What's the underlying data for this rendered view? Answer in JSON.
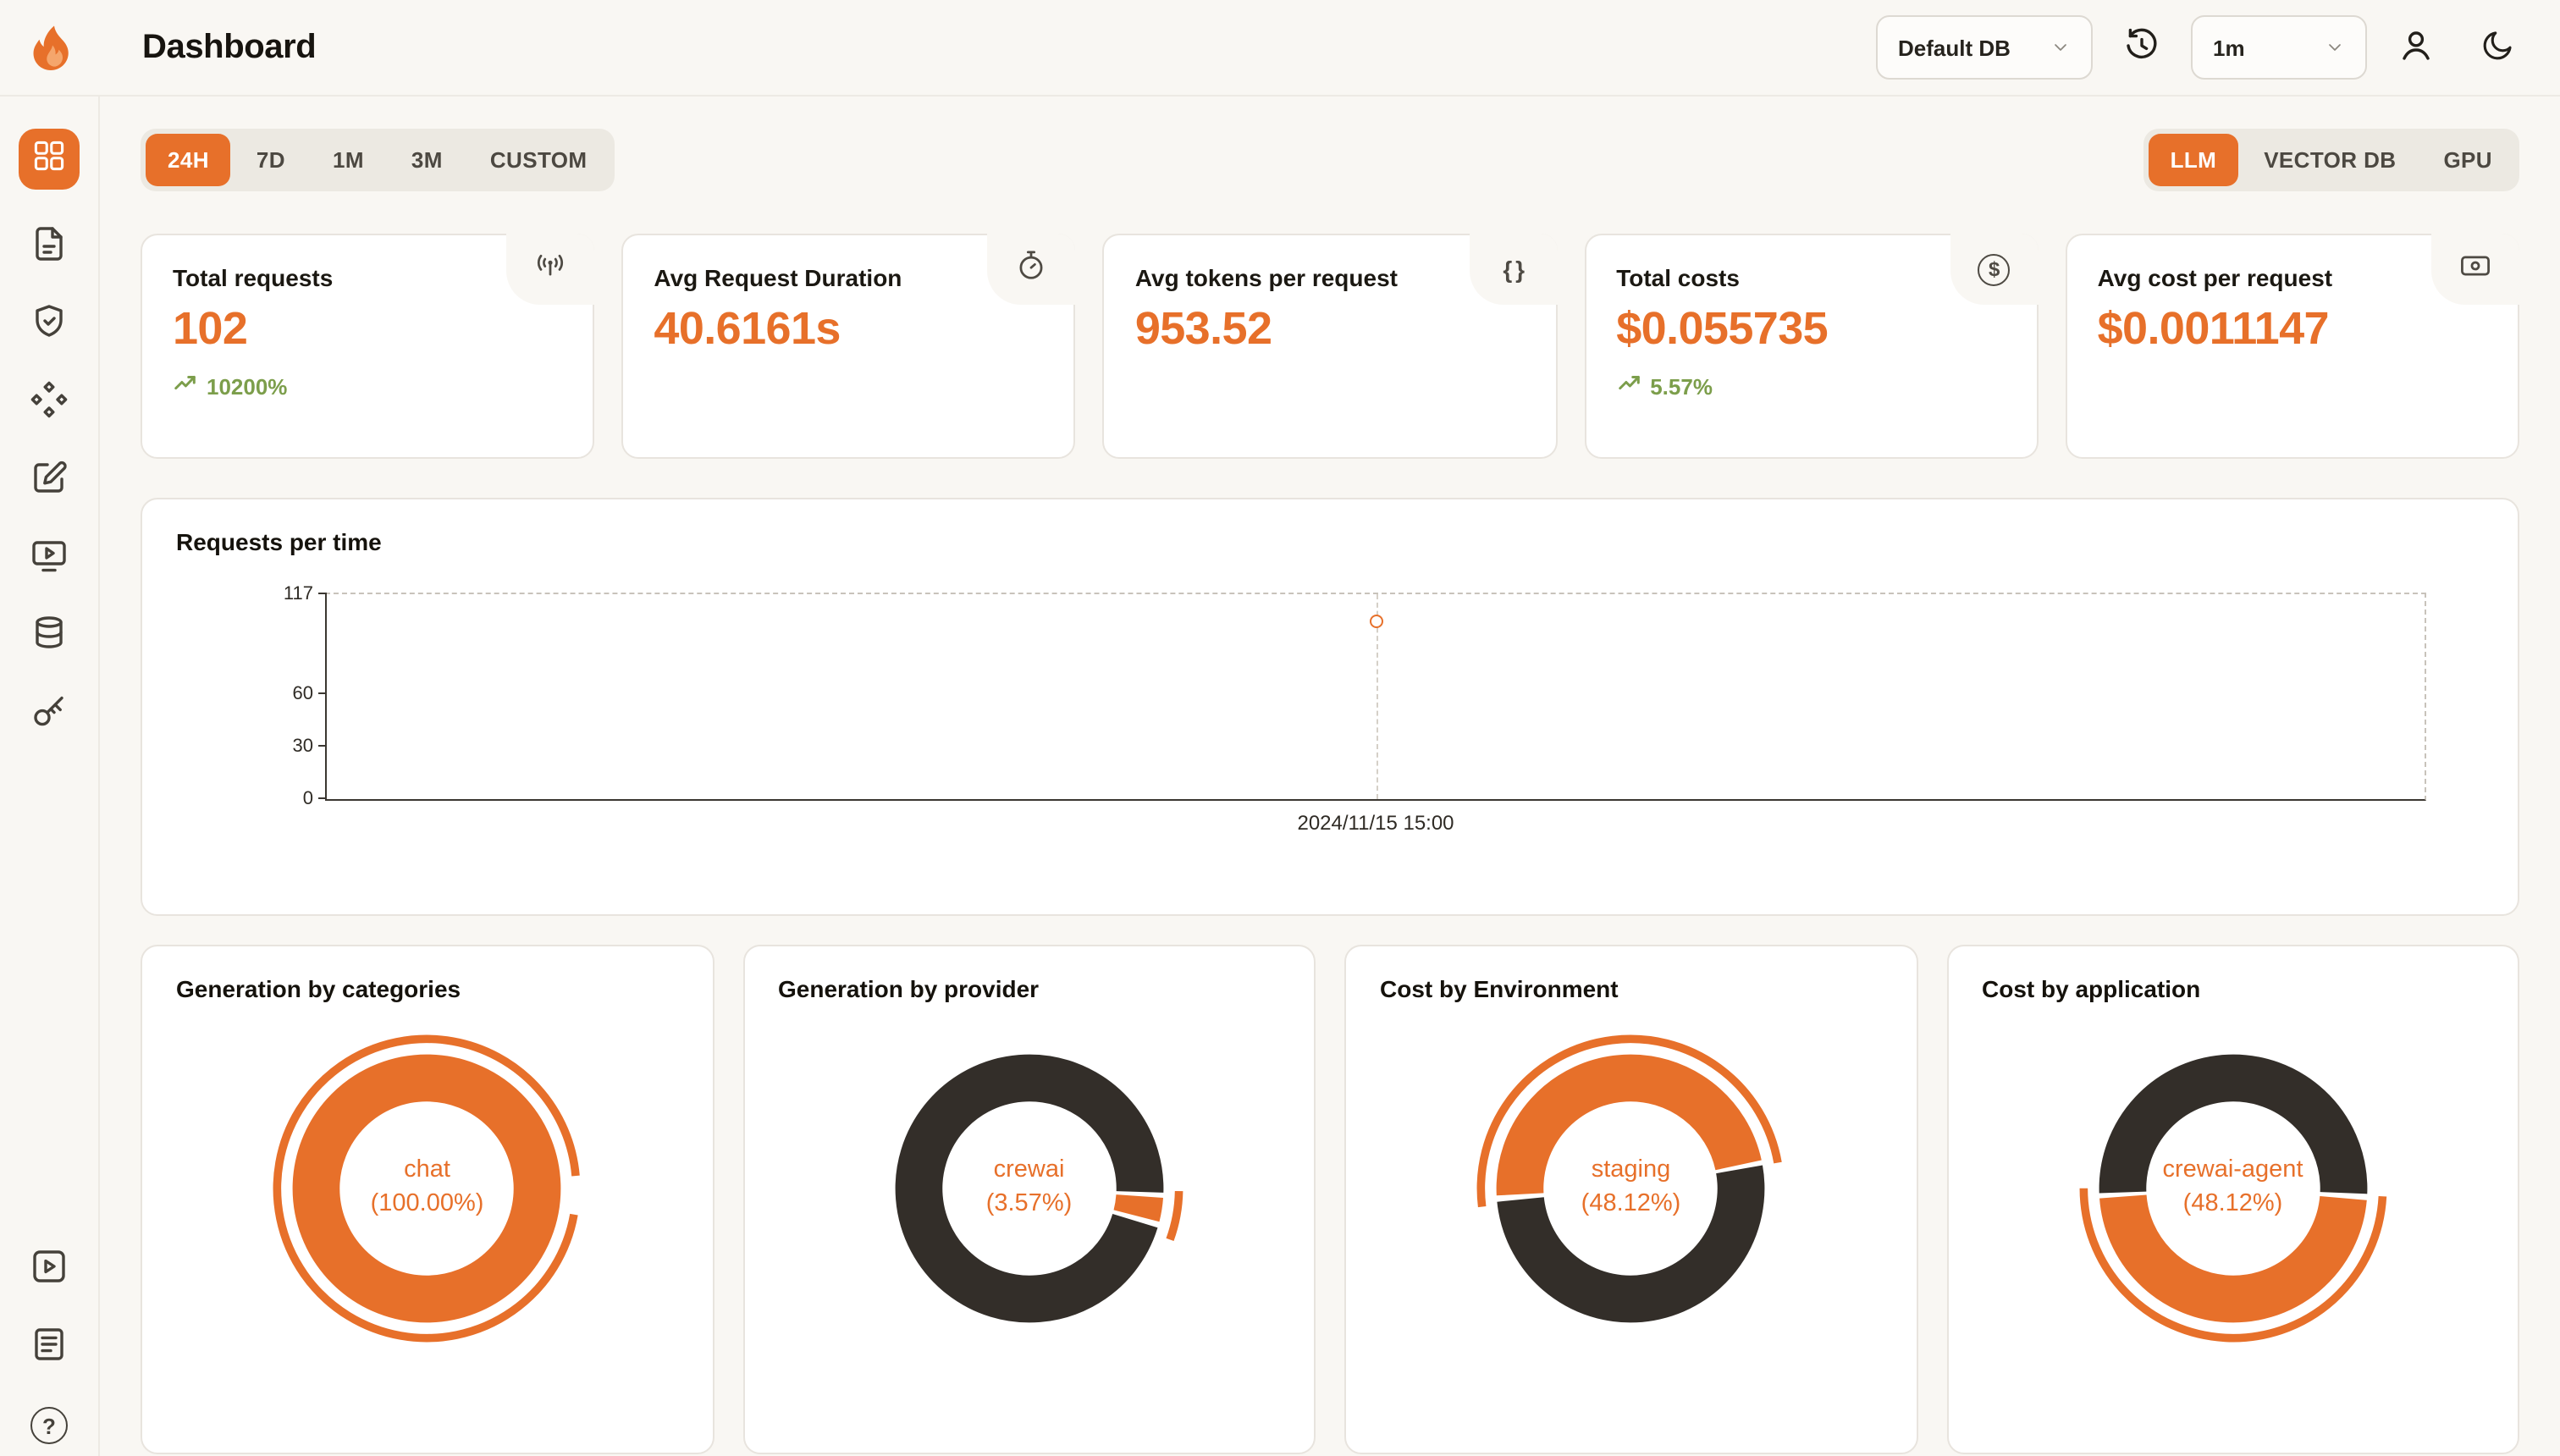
{
  "app": {
    "title": "Dashboard"
  },
  "header": {
    "db_select": {
      "value": "Default DB"
    },
    "interval_select": {
      "value": "1m"
    }
  },
  "sidebar": {
    "icons": [
      "dashboard",
      "file",
      "shield",
      "modules",
      "edit-note",
      "screen-play",
      "database",
      "key"
    ],
    "bottom_icons": [
      "play-square",
      "docs",
      "help"
    ]
  },
  "filters": {
    "time_tabs": [
      {
        "label": "24H",
        "active": true
      },
      {
        "label": "7D",
        "active": false
      },
      {
        "label": "1M",
        "active": false
      },
      {
        "label": "3M",
        "active": false
      },
      {
        "label": "CUSTOM",
        "active": false
      }
    ],
    "scope_tabs": [
      {
        "label": "LLM",
        "active": true
      },
      {
        "label": "VECTOR DB",
        "active": false
      },
      {
        "label": "GPU",
        "active": false
      }
    ]
  },
  "stat_cards": [
    {
      "label": "Total requests",
      "value": "102",
      "delta": "10200%",
      "icon": "broadcast-icon"
    },
    {
      "label": "Avg Request Duration",
      "value": "40.6161s",
      "icon": "stopwatch-icon"
    },
    {
      "label": "Avg tokens per request",
      "value": "953.52",
      "icon": "braces-icon"
    },
    {
      "label": "Total costs",
      "value": "$0.055735",
      "delta": "5.57%",
      "icon": "dollar-circle-icon"
    },
    {
      "label": "Avg cost per request",
      "value": "$0.0011147",
      "icon": "cash-icon"
    }
  ],
  "icons": {
    "braces_glyph": "{ }",
    "dollar_glyph": "$",
    "help_glyph": "?"
  },
  "chart_data": [
    {
      "type": "line",
      "title": "Requests per time",
      "xlabel": "",
      "ylabel": "",
      "ylim": [
        0,
        117
      ],
      "yticks": [
        0,
        30,
        60,
        117
      ],
      "points": [
        {
          "x_label": "2024/11/15 15:00",
          "y": 102,
          "x_frac": 0.5
        }
      ],
      "grid": "dashed-top-right-frame",
      "legend": "none"
    },
    {
      "type": "donut",
      "title": "Generation by categories",
      "center": {
        "label": "chat",
        "pct": "(100.00%)"
      },
      "segments": [
        {
          "name": "chat",
          "value": 100,
          "color": "#E7702A",
          "start_deg": 0
        }
      ],
      "outer_arc": {
        "start_deg": 100,
        "sweep_deg": 345
      }
    },
    {
      "type": "donut",
      "title": "Generation by provider",
      "center": {
        "label": "crewai",
        "pct": "(3.57%)"
      },
      "segments": [
        {
          "name": "crewai",
          "value": 3.57,
          "color": "#E7702A",
          "start_deg": 94
        },
        {
          "name": "other",
          "value": 96.43,
          "color": "#332E29",
          "start_deg": 107
        }
      ],
      "outer_arc": {
        "start_deg": 91,
        "sweep_deg": 19
      }
    },
    {
      "type": "donut",
      "title": "Cost by Environment",
      "center": {
        "label": "staging",
        "pct": "(48.12%)"
      },
      "segments": [
        {
          "name": "staging",
          "value": 48.12,
          "color": "#E7702A",
          "start_deg": 267
        },
        {
          "name": "other",
          "value": 51.88,
          "color": "#332E29",
          "start_deg": 80
        }
      ],
      "outer_arc": {
        "start_deg": 263,
        "sweep_deg": 177
      }
    },
    {
      "type": "donut",
      "title": "Cost by application",
      "center": {
        "label": "crewai-agent",
        "pct": "(48.12%)"
      },
      "segments": [
        {
          "name": "crewai-agent",
          "value": 48.12,
          "color": "#E7702A",
          "start_deg": 95
        },
        {
          "name": "other",
          "value": 51.88,
          "color": "#332E29",
          "start_deg": 268
        }
      ],
      "outer_arc": {
        "start_deg": 93,
        "sweep_deg": 177
      }
    }
  ],
  "colors": {
    "accent": "#E7702A",
    "dark_segment": "#332E29",
    "positive": "#7C9E4B",
    "page_bg": "#F9F7F3"
  }
}
